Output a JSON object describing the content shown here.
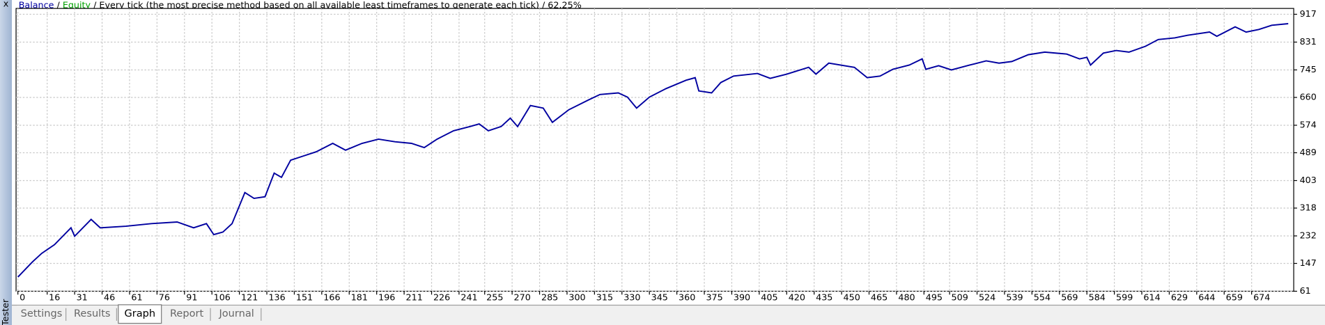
{
  "chart_data": {
    "type": "line",
    "legend_separator": "/",
    "description": "Every tick (the most precise method based on all available least timeframes to generate each tick)",
    "quality": "62.25%",
    "series": [
      {
        "name": "Balance",
        "color": "#0000a0",
        "x": [
          0,
          8,
          13,
          20,
          29,
          31,
          40,
          45,
          59,
          73,
          87,
          96,
          103,
          107,
          112,
          117,
          124,
          129,
          135,
          140,
          144,
          149,
          156,
          163,
          172,
          179,
          188,
          197,
          206,
          215,
          222,
          229,
          238,
          247,
          252,
          257,
          264,
          269,
          273,
          280,
          287,
          292,
          301,
          312,
          318,
          328,
          333,
          338,
          345,
          354,
          365,
          370,
          372,
          379,
          384,
          391,
          404,
          411,
          420,
          432,
          436,
          443,
          457,
          464,
          471,
          478,
          487,
          494,
          496,
          503,
          510,
          520,
          529,
          536,
          543,
          552,
          561,
          573,
          580,
          584,
          586,
          593,
          600,
          607,
          616,
          623,
          632,
          639,
          651,
          655,
          665,
          671,
          678,
          685,
          694
        ],
        "values": [
          105,
          152,
          178,
          205,
          257,
          231,
          283,
          257,
          262,
          270,
          275,
          257,
          270,
          236,
          244,
          270,
          366,
          348,
          353,
          426,
          413,
          466,
          479,
          492,
          518,
          497,
          518,
          531,
          523,
          518,
          505,
          531,
          557,
          570,
          578,
          557,
          570,
          596,
          570,
          635,
          627,
          583,
          622,
          653,
          669,
          674,
          661,
          627,
          661,
          687,
          713,
          721,
          680,
          674,
          706,
          726,
          734,
          719,
          732,
          753,
          732,
          766,
          753,
          721,
          726,
          747,
          760,
          779,
          747,
          758,
          745,
          760,
          773,
          766,
          771,
          792,
          800,
          794,
          779,
          784,
          760,
          797,
          805,
          800,
          818,
          839,
          844,
          852,
          862,
          849,
          878,
          862,
          870,
          883,
          888
        ]
      },
      {
        "name": "Equity",
        "color": "#00a000"
      }
    ],
    "xlim": [
      -1,
      697
    ],
    "xticks": [
      0,
      16,
      31,
      46,
      61,
      76,
      91,
      106,
      121,
      136,
      151,
      166,
      181,
      196,
      211,
      226,
      241,
      255,
      270,
      285,
      300,
      315,
      330,
      345,
      360,
      375,
      390,
      405,
      420,
      435,
      450,
      465,
      480,
      495,
      509,
      524,
      539,
      554,
      569,
      584,
      599,
      614,
      629,
      644,
      659,
      674
    ],
    "ylim": [
      61,
      935
    ],
    "yticks": [
      61,
      147,
      232,
      318,
      403,
      489,
      574,
      660,
      745,
      831,
      917
    ],
    "grid": true
  },
  "ui": {
    "side_label": "Tester",
    "close": "x",
    "tabs": [
      "Settings",
      "Results",
      "Graph",
      "Report",
      "Journal"
    ],
    "active_tab": 2
  }
}
